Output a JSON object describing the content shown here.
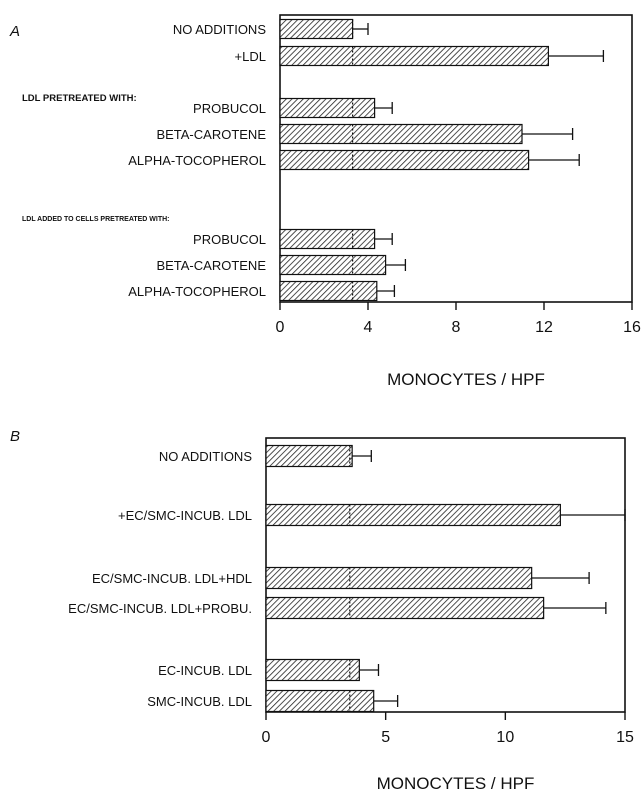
{
  "chart_data": [
    {
      "type": "bar",
      "orientation": "horizontal",
      "panel": "A",
      "xlabel": "MONOCYTES / HPF",
      "xlim": [
        0,
        16
      ],
      "xticks": [
        "0",
        "4",
        "8",
        "12",
        "16"
      ],
      "group_headers": [
        "LDL PRETREATED WITH:",
        "LDL ADDED TO CELLS PRETREATED WITH:"
      ],
      "categories": [
        "NO ADDITIONS",
        "+LDL",
        "PROBUCOL",
        "BETA-CAROTENE",
        "ALPHA-TOCOPHEROL",
        "PROBUCOL",
        "BETA-CAROTENE",
        "ALPHA-TOCOPHEROL"
      ],
      "groups": [
        "",
        "",
        "LDL PRETREATED WITH:",
        "LDL PRETREATED WITH:",
        "LDL PRETREATED WITH:",
        "LDL ADDED TO CELLS PRETREATED WITH:",
        "LDL ADDED TO CELLS PRETREATED WITH:",
        "LDL ADDED TO CELLS PRETREATED WITH:"
      ],
      "values": [
        3.3,
        12.2,
        4.3,
        11.0,
        11.3,
        4.3,
        4.8,
        4.4
      ],
      "errors": [
        0.7,
        2.5,
        0.8,
        2.3,
        2.3,
        0.8,
        0.9,
        0.8
      ],
      "baseline_marker": [
        3.3,
        3.3,
        3.3,
        3.3,
        3.3,
        3.3,
        3.3,
        3.3
      ],
      "grid": false
    },
    {
      "type": "bar",
      "orientation": "horizontal",
      "panel": "B",
      "xlabel": "MONOCYTES / HPF",
      "xlim": [
        0,
        15
      ],
      "xticks": [
        "0",
        "5",
        "10",
        "15"
      ],
      "group_headers": [],
      "categories": [
        "NO ADDITIONS",
        "+EC/SMC-INCUB. LDL",
        "EC/SMC-INCUB. LDL+HDL",
        "EC/SMC-INCUB. LDL+PROBU.",
        "EC-INCUB. LDL",
        "SMC-INCUB. LDL"
      ],
      "groups": [
        "",
        "",
        "",
        "",
        "",
        ""
      ],
      "values": [
        3.6,
        12.3,
        11.1,
        11.6,
        3.9,
        4.5
      ],
      "errors": [
        0.8,
        2.7,
        2.4,
        2.6,
        0.8,
        1.0
      ],
      "baseline_marker": [
        3.5,
        3.5,
        3.5,
        3.5,
        3.5,
        3.5
      ],
      "grid": false
    }
  ]
}
